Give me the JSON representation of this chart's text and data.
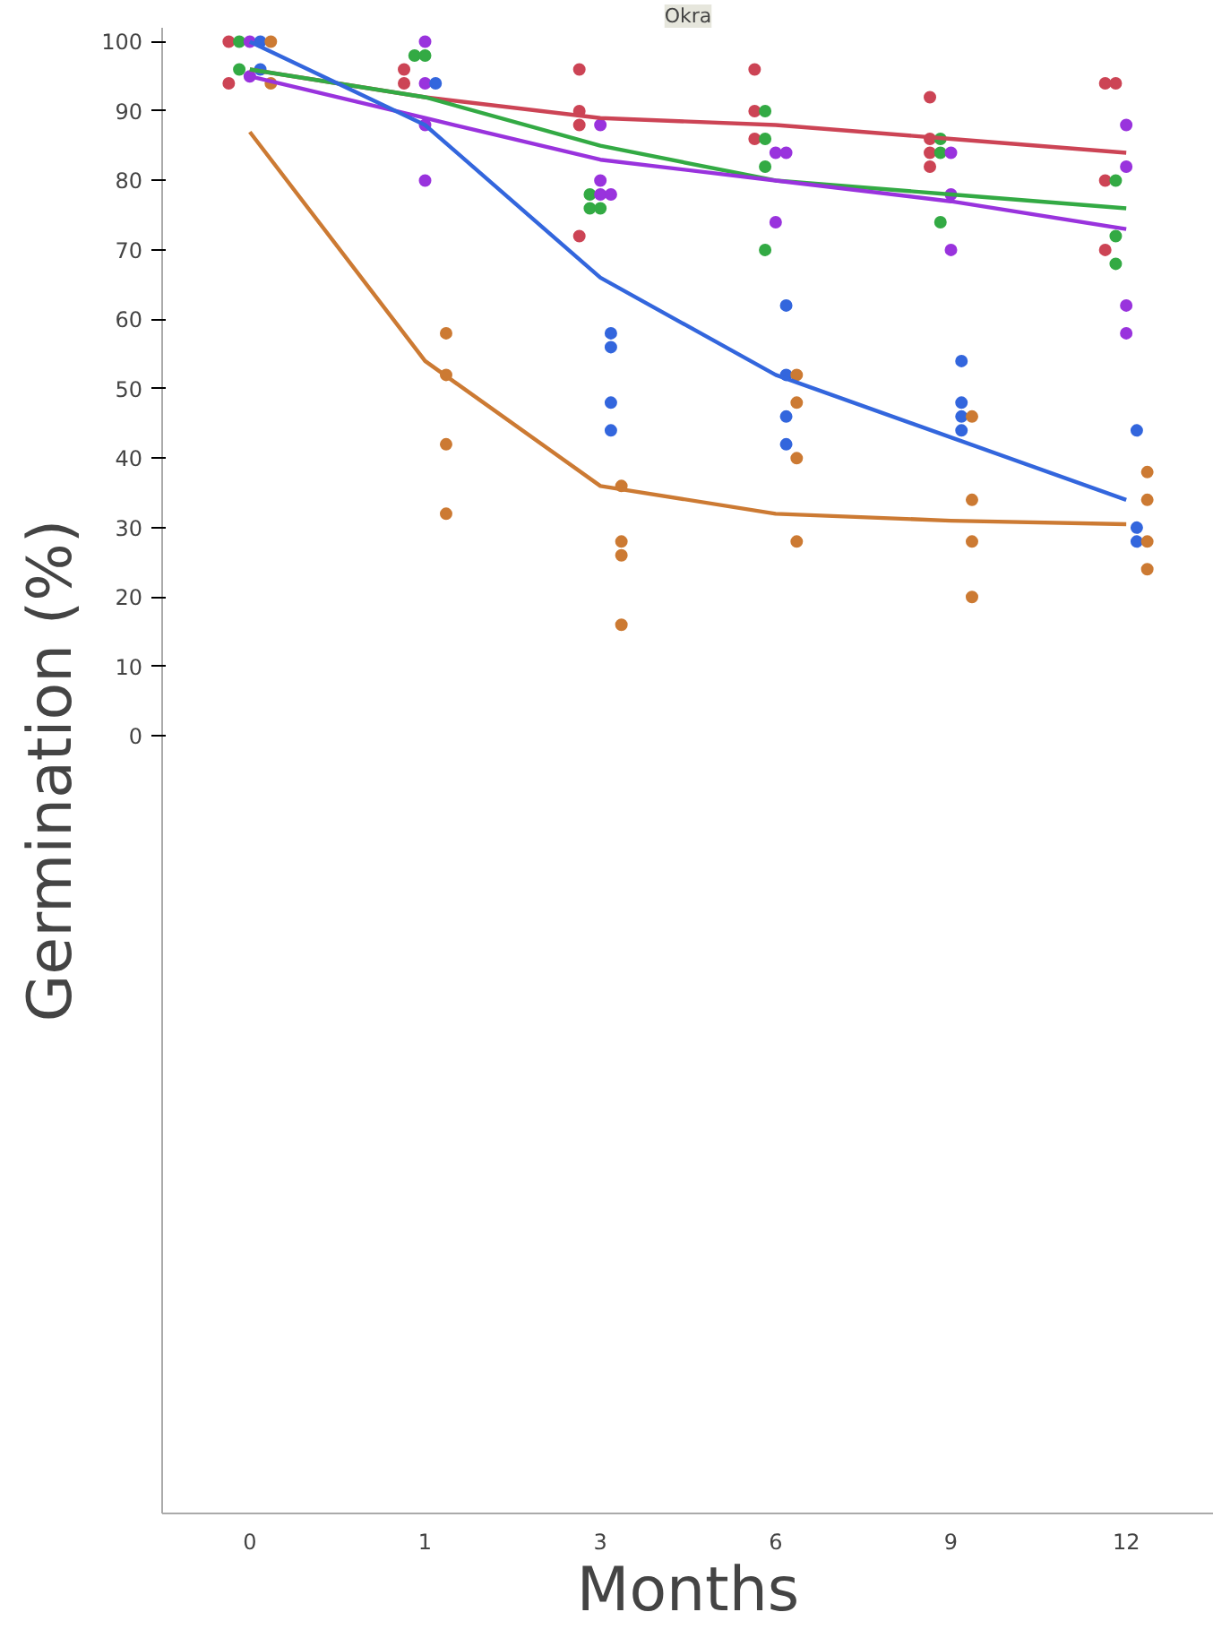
{
  "chart_data": {
    "type": "scatter",
    "title": "Okra",
    "xlabel": "Months",
    "ylabel": "Germination (%)",
    "categories": [
      "0",
      "1",
      "3",
      "6",
      "9",
      "12"
    ],
    "ylim": [
      -112,
      102
    ],
    "yticks": [
      0,
      10,
      20,
      30,
      40,
      50,
      60,
      70,
      80,
      90,
      100
    ],
    "grid": false,
    "series": [
      {
        "marker": "circle",
        "color": "#cc4455",
        "x": [
          "0",
          "0",
          "1",
          "1",
          "3",
          "3",
          "3",
          "3",
          "6",
          "6",
          "6",
          "9",
          "9",
          "9",
          "9",
          "12",
          "12",
          "12",
          "12"
        ],
        "values": [
          100,
          94,
          96,
          94,
          96,
          90,
          88,
          72,
          96,
          90,
          86,
          92,
          86,
          84,
          82,
          94,
          94,
          80,
          70
        ]
      },
      {
        "marker": "circle",
        "color": "#33aa44",
        "x": [
          "0",
          "0",
          "1",
          "1",
          "3",
          "3",
          "3",
          "6",
          "6",
          "6",
          "6",
          "9",
          "9",
          "9",
          "12",
          "12",
          "12"
        ],
        "values": [
          100,
          96,
          98,
          98,
          78,
          76,
          76,
          90,
          86,
          82,
          70,
          86,
          84,
          74,
          80,
          72,
          68
        ]
      },
      {
        "marker": "circle",
        "color": "#9933dd",
        "x": [
          "0",
          "0",
          "1",
          "1",
          "1",
          "1",
          "3",
          "3",
          "3",
          "3",
          "6",
          "6",
          "6",
          "9",
          "9",
          "9",
          "12",
          "12",
          "12",
          "12"
        ],
        "values": [
          100,
          95,
          100,
          94,
          88,
          80,
          88,
          80,
          78,
          78,
          84,
          84,
          74,
          84,
          78,
          70,
          88,
          82,
          62,
          58
        ]
      },
      {
        "marker": "circle",
        "color": "#3366dd",
        "x": [
          "0",
          "0",
          "1",
          "3",
          "3",
          "3",
          "3",
          "6",
          "6",
          "6",
          "6",
          "9",
          "9",
          "9",
          "9",
          "12",
          "12",
          "12"
        ],
        "values": [
          100,
          96,
          94,
          58,
          56,
          48,
          44,
          62,
          52,
          46,
          42,
          54,
          48,
          46,
          44,
          44,
          30,
          28
        ]
      },
      {
        "marker": "circle",
        "color": "#cc7a33",
        "x": [
          "0",
          "0",
          "1",
          "1",
          "1",
          "1",
          "3",
          "3",
          "3",
          "3",
          "6",
          "6",
          "6",
          "6",
          "9",
          "9",
          "9",
          "9",
          "12",
          "12",
          "12",
          "12"
        ],
        "values": [
          100,
          94,
          58,
          52,
          42,
          32,
          36,
          28,
          26,
          16,
          52,
          48,
          40,
          28,
          46,
          34,
          28,
          20,
          38,
          34,
          28,
          24
        ]
      },
      {
        "type": "line",
        "marker": "none",
        "color": "#cc4455",
        "values": [
          96,
          92,
          89,
          88,
          86,
          84
        ]
      },
      {
        "type": "line",
        "marker": "none",
        "color": "#33aa44",
        "values": [
          96,
          92,
          85,
          80,
          78,
          76
        ]
      },
      {
        "type": "line",
        "marker": "none",
        "color": "#9933dd",
        "values": [
          95,
          89,
          83,
          80,
          77,
          73
        ]
      },
      {
        "type": "line",
        "marker": "none",
        "color": "#3366dd",
        "values": [
          100,
          88,
          66,
          52,
          43,
          34
        ]
      },
      {
        "type": "line",
        "marker": "none",
        "color": "#cc7a33",
        "values": [
          87,
          54,
          36,
          32,
          31,
          30.5
        ]
      }
    ]
  }
}
